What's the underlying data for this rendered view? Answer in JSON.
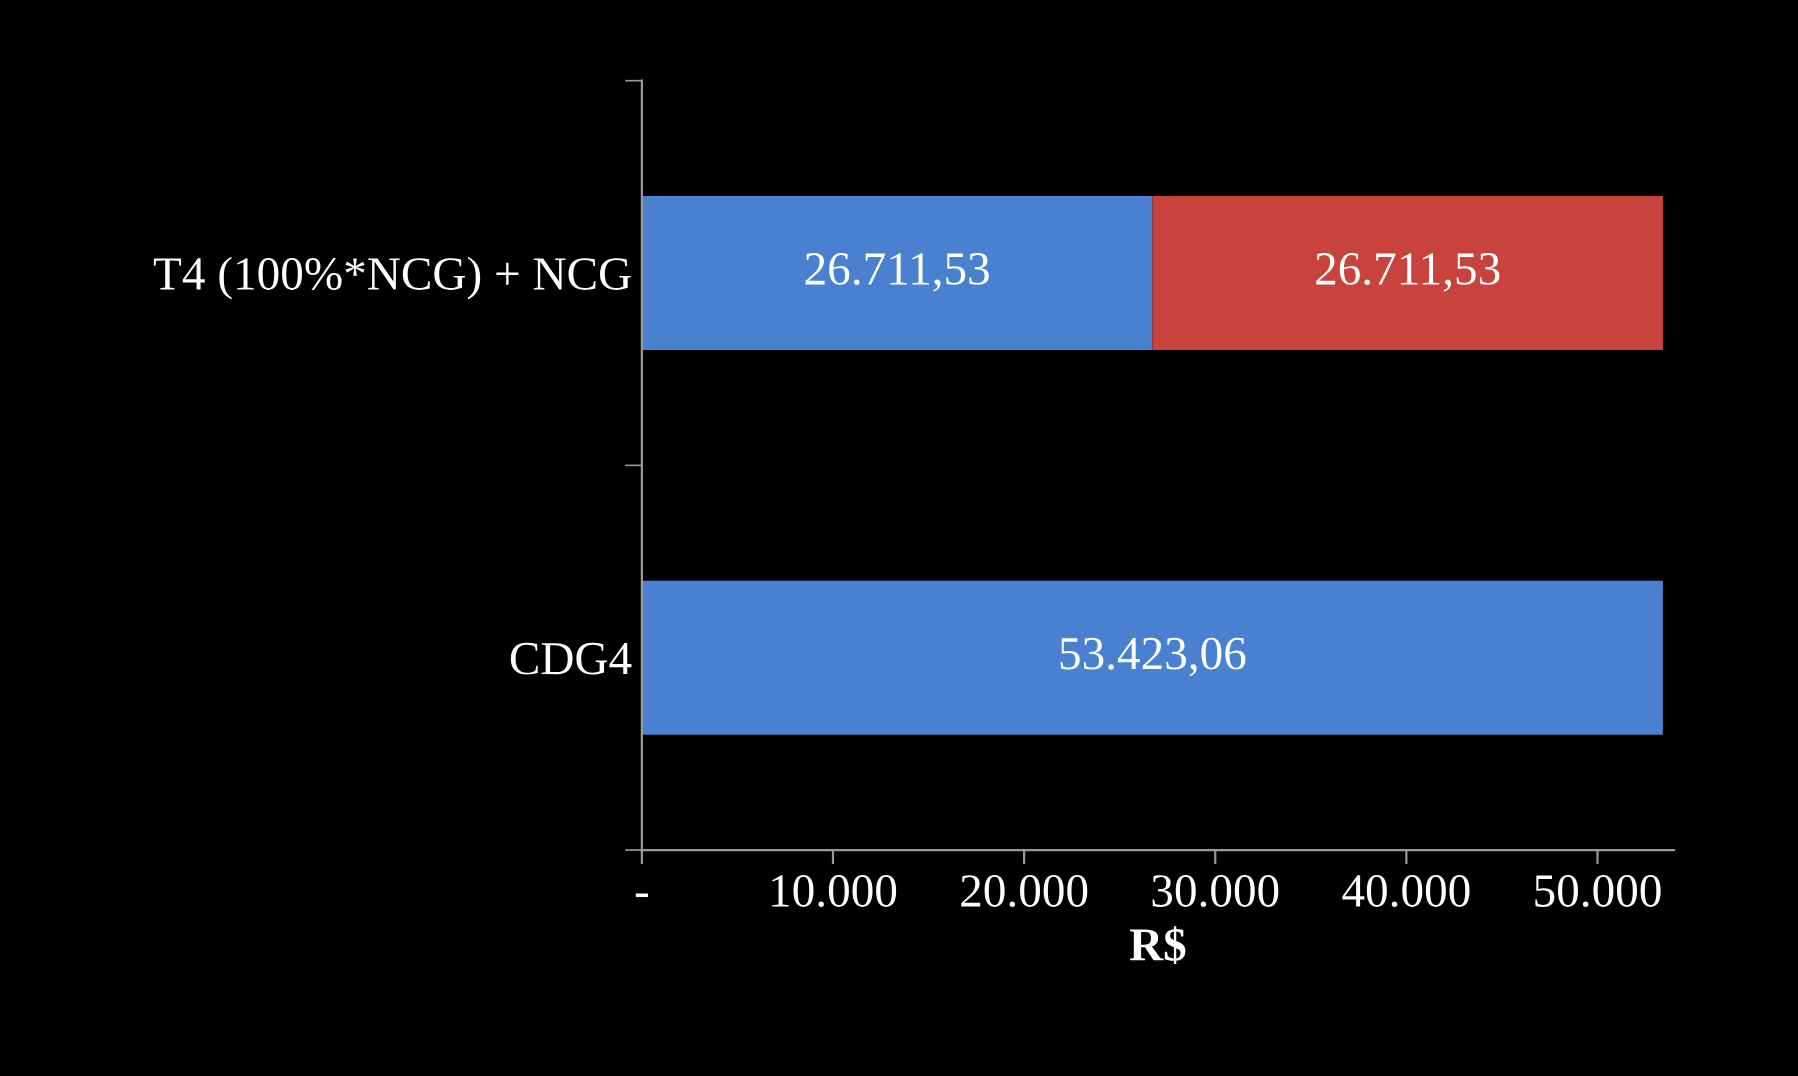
{
  "chart_data": {
    "type": "bar",
    "orientation": "horizontal",
    "stacked": true,
    "xlabel": "R$",
    "categories": [
      "T4 (100%*NCG) + NCG",
      "CDG4"
    ],
    "series": [
      {
        "color": "#4a80d0",
        "values": [
          26711.53,
          53423.06
        ],
        "value_labels": [
          "26.711,53",
          "53.423,06"
        ]
      },
      {
        "color": "#c8423e",
        "values": [
          26711.53,
          null
        ],
        "value_labels": [
          "26.711,53",
          null
        ]
      }
    ],
    "xlim": [
      0,
      54000
    ],
    "xticks": [
      {
        "value": 0,
        "label": "-"
      },
      {
        "value": 10000,
        "label": "10.000"
      },
      {
        "value": 20000,
        "label": "20.000"
      },
      {
        "value": 30000,
        "label": "30.000"
      },
      {
        "value": 40000,
        "label": "40.000"
      },
      {
        "value": 50000,
        "label": "50.000"
      }
    ],
    "grid": false,
    "legend": false
  }
}
